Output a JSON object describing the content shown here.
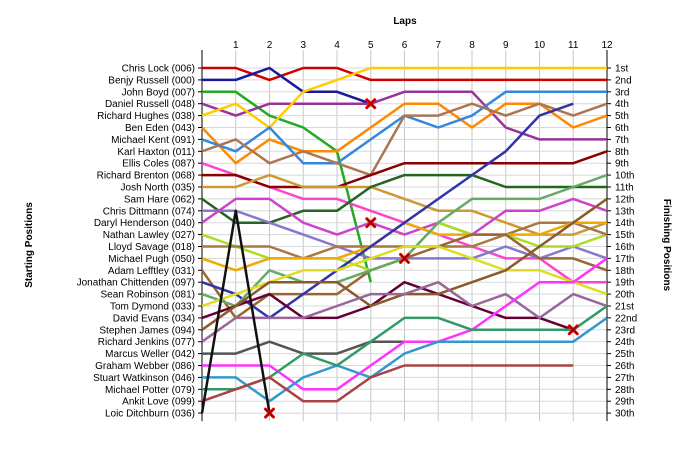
{
  "chart_data": {
    "type": "line",
    "title": "Laps",
    "ylabel_left": "Starting Positions",
    "ylabel_right": "Finishing Positions",
    "laps": [
      "1",
      "2",
      "3",
      "4",
      "5",
      "6",
      "7",
      "8",
      "9",
      "10",
      "11",
      "12"
    ],
    "grid": true,
    "y_inverted": true,
    "position_range": [
      1,
      30
    ],
    "finishing_labels": [
      "1st",
      "2nd",
      "3rd",
      "4th",
      "5th",
      "6th",
      "7th",
      "8th",
      "9th",
      "10th",
      "11th",
      "12th",
      "13th",
      "14th",
      "15th",
      "16th",
      "17th",
      "18th",
      "19th",
      "20th",
      "21st",
      "22nd",
      "23rd",
      "24th",
      "25th",
      "26th",
      "27th",
      "28th",
      "29th",
      "30th"
    ],
    "series": [
      {
        "name": "Chris Lock (006)",
        "color": "#cc0000",
        "positions": [
          1,
          1,
          2,
          1,
          1,
          2,
          2,
          2,
          2,
          2,
          2,
          2,
          2
        ]
      },
      {
        "name": "Benjy Russell (000)",
        "color": "#1a1a99",
        "positions": [
          2,
          2,
          1,
          3,
          3,
          4
        ]
      },
      {
        "name": "John Boyd (007)",
        "color": "#22aa22",
        "positions": [
          3,
          3,
          5,
          6,
          8,
          19
        ]
      },
      {
        "name": "Daniel Russell (048)",
        "color": "#993399",
        "positions": [
          4,
          5,
          4,
          4,
          4,
          4,
          3,
          3,
          3,
          6,
          7,
          7,
          7
        ]
      },
      {
        "name": "Richard Hughes (038)",
        "color": "#ffcc00",
        "positions": [
          5,
          4,
          6,
          3,
          2,
          1,
          1,
          1,
          1,
          1,
          1,
          1,
          1
        ]
      },
      {
        "name": "Ben Eden (043)",
        "color": "#ff8800",
        "positions": [
          6,
          9,
          7,
          8,
          8,
          6,
          4,
          4,
          6,
          4,
          4,
          6,
          5
        ]
      },
      {
        "name": "Michael Kent (091)",
        "color": "#3388dd",
        "positions": [
          7,
          8,
          6,
          9,
          9,
          7,
          5,
          6,
          5,
          3,
          3,
          3,
          3
        ]
      },
      {
        "name": "Karl Haxton (011)",
        "color": "#aa7755",
        "positions": [
          8,
          7,
          9,
          8,
          9,
          10,
          5,
          5,
          4,
          5,
          4,
          5,
          4
        ]
      },
      {
        "name": "Ellis Coles (087)",
        "color": "#ff44cc",
        "positions": [
          9,
          10,
          11,
          12,
          12,
          13,
          14,
          15,
          16,
          17,
          17,
          19,
          19
        ]
      },
      {
        "name": "Richard Brenton (068)",
        "color": "#880000",
        "positions": [
          10,
          10,
          11,
          11,
          11,
          10,
          9,
          9,
          9,
          9,
          9,
          9,
          8
        ]
      },
      {
        "name": "Josh North (035)",
        "color": "#cc9933",
        "positions": [
          11,
          11,
          10,
          11,
          11,
          11,
          12,
          13,
          13,
          14,
          15,
          15,
          14
        ]
      },
      {
        "name": "Sam Hare (062)",
        "color": "#226622",
        "positions": [
          12,
          14,
          14,
          13,
          13,
          11,
          10,
          10,
          10,
          11,
          11,
          11,
          11
        ]
      },
      {
        "name": "Chris Dittmann (074)",
        "color": "#8877cc",
        "positions": [
          13,
          13,
          14,
          15,
          16,
          17,
          17,
          17,
          17,
          16,
          17,
          16,
          17
        ]
      },
      {
        "name": "Daryl Henderson (040)",
        "color": "#cc44cc",
        "positions": [
          14,
          12,
          12,
          14,
          15,
          14,
          15,
          14,
          15,
          13,
          13,
          12,
          13
        ]
      },
      {
        "name": "Nathan Lawley (027)",
        "color": "#aadd22",
        "positions": [
          15,
          16,
          17,
          17,
          17,
          18,
          17,
          14,
          15,
          15,
          16,
          16,
          15
        ]
      },
      {
        "name": "Lloyd Savage (018)",
        "color": "#aa7744",
        "positions": [
          16,
          16,
          16,
          17,
          16,
          16,
          16,
          16,
          16,
          15,
          14,
          14,
          15
        ]
      },
      {
        "name": "Michael Pugh (050)",
        "color": "#eeaa00",
        "positions": [
          17,
          18,
          17,
          17,
          17,
          16,
          14,
          15,
          15,
          15,
          15,
          14,
          14
        ]
      },
      {
        "name": "Adam Lefftley (031)",
        "color": "#996633",
        "positions": [
          18,
          22,
          20,
          20,
          20,
          18,
          17,
          16,
          15,
          15,
          17,
          17,
          18
        ]
      },
      {
        "name": "Jonathan Chittenden (097)",
        "color": "#3333aa",
        "positions": [
          19,
          20,
          22,
          20,
          18,
          16,
          14,
          12,
          10,
          8,
          5,
          4
        ]
      },
      {
        "name": "Sean Robinson (081)",
        "color": "#66aa66",
        "positions": [
          20,
          21,
          18,
          19,
          19,
          18,
          17,
          14,
          12,
          12,
          12,
          11,
          10
        ]
      },
      {
        "name": "Tom Dymond (033)",
        "color": "#dddd22",
        "positions": [
          21,
          20,
          19,
          18,
          18,
          17,
          16,
          16,
          17,
          18,
          18,
          19,
          20
        ]
      },
      {
        "name": "David Evans (034)",
        "color": "#660033",
        "positions": [
          22,
          21,
          20,
          22,
          22,
          21,
          19,
          20,
          21,
          22,
          22,
          23
        ]
      },
      {
        "name": "Stephen James (094)",
        "color": "#8b5a2b",
        "positions": [
          23,
          21,
          19,
          19,
          19,
          21,
          20,
          20,
          19,
          18,
          16,
          14,
          12
        ]
      },
      {
        "name": "Richard Jenkins (077)",
        "color": "#996699",
        "positions": [
          24,
          22,
          22,
          22,
          21,
          20,
          20,
          19,
          21,
          20,
          22,
          20,
          21
        ]
      },
      {
        "name": "Marcus Weller (042)",
        "color": "#555555",
        "positions": [
          25,
          25,
          24,
          25,
          25,
          24,
          24,
          24,
          24,
          24,
          24,
          24
        ]
      },
      {
        "name": "Graham Webber (086)",
        "color": "#ff33ff",
        "positions": [
          26,
          26,
          26,
          28,
          28,
          26,
          24,
          24,
          23,
          21,
          19,
          19,
          17
        ]
      },
      {
        "name": "Stuart Watkinson (046)",
        "color": "#3399cc",
        "positions": [
          27,
          27,
          29,
          27,
          26,
          27,
          25,
          24,
          24,
          24,
          24,
          24,
          22
        ]
      },
      {
        "name": "Michael Potter (079)",
        "color": "#339966",
        "positions": [
          28,
          28,
          27,
          25,
          26,
          24,
          22,
          22,
          23,
          23,
          23,
          23,
          21
        ]
      },
      {
        "name": "Ankit Love (099)",
        "color": "#aa4444",
        "positions": [
          29,
          28,
          27,
          29,
          29,
          27,
          26,
          26,
          26,
          26,
          26,
          26
        ]
      },
      {
        "name": "Loic Ditchburn (036)",
        "color": "#111111",
        "positions": [
          30,
          13,
          30
        ]
      }
    ],
    "retirements": [
      {
        "driver": "Benjy Russell (000)",
        "lap": "5",
        "position": 4
      },
      {
        "driver": "John Boyd (007)",
        "lap": "5",
        "position": 14
      },
      {
        "driver": "Loic Ditchburn (036)",
        "lap": "2",
        "position": 30
      },
      {
        "driver": "John Boyd (007)",
        "lap": "6",
        "position": 17
      },
      {
        "driver": "David Evans (034)",
        "lap": "11",
        "position": 23
      }
    ]
  }
}
